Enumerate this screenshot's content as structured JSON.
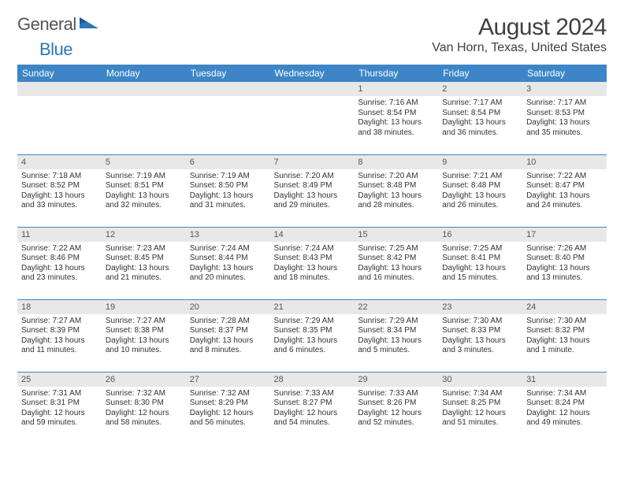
{
  "brand": {
    "part1": "General",
    "part2": "Blue"
  },
  "title": "August 2024",
  "location": "Van Horn, Texas, United States",
  "colors": {
    "header_bg": "#3d85c6",
    "header_text": "#ffffff",
    "daynum_bg": "#e8e8e8",
    "row_divider": "#3d85c6",
    "body_text": "#333333",
    "title_text": "#404040"
  },
  "day_headers": [
    "Sunday",
    "Monday",
    "Tuesday",
    "Wednesday",
    "Thursday",
    "Friday",
    "Saturday"
  ],
  "weeks": [
    [
      {
        "n": "",
        "sr": "",
        "ss": "",
        "dl": ""
      },
      {
        "n": "",
        "sr": "",
        "ss": "",
        "dl": ""
      },
      {
        "n": "",
        "sr": "",
        "ss": "",
        "dl": ""
      },
      {
        "n": "",
        "sr": "",
        "ss": "",
        "dl": ""
      },
      {
        "n": "1",
        "sr": "Sunrise: 7:16 AM",
        "ss": "Sunset: 8:54 PM",
        "dl": "Daylight: 13 hours and 38 minutes."
      },
      {
        "n": "2",
        "sr": "Sunrise: 7:17 AM",
        "ss": "Sunset: 8:54 PM",
        "dl": "Daylight: 13 hours and 36 minutes."
      },
      {
        "n": "3",
        "sr": "Sunrise: 7:17 AM",
        "ss": "Sunset: 8:53 PM",
        "dl": "Daylight: 13 hours and 35 minutes."
      }
    ],
    [
      {
        "n": "4",
        "sr": "Sunrise: 7:18 AM",
        "ss": "Sunset: 8:52 PM",
        "dl": "Daylight: 13 hours and 33 minutes."
      },
      {
        "n": "5",
        "sr": "Sunrise: 7:19 AM",
        "ss": "Sunset: 8:51 PM",
        "dl": "Daylight: 13 hours and 32 minutes."
      },
      {
        "n": "6",
        "sr": "Sunrise: 7:19 AM",
        "ss": "Sunset: 8:50 PM",
        "dl": "Daylight: 13 hours and 31 minutes."
      },
      {
        "n": "7",
        "sr": "Sunrise: 7:20 AM",
        "ss": "Sunset: 8:49 PM",
        "dl": "Daylight: 13 hours and 29 minutes."
      },
      {
        "n": "8",
        "sr": "Sunrise: 7:20 AM",
        "ss": "Sunset: 8:48 PM",
        "dl": "Daylight: 13 hours and 28 minutes."
      },
      {
        "n": "9",
        "sr": "Sunrise: 7:21 AM",
        "ss": "Sunset: 8:48 PM",
        "dl": "Daylight: 13 hours and 26 minutes."
      },
      {
        "n": "10",
        "sr": "Sunrise: 7:22 AM",
        "ss": "Sunset: 8:47 PM",
        "dl": "Daylight: 13 hours and 24 minutes."
      }
    ],
    [
      {
        "n": "11",
        "sr": "Sunrise: 7:22 AM",
        "ss": "Sunset: 8:46 PM",
        "dl": "Daylight: 13 hours and 23 minutes."
      },
      {
        "n": "12",
        "sr": "Sunrise: 7:23 AM",
        "ss": "Sunset: 8:45 PM",
        "dl": "Daylight: 13 hours and 21 minutes."
      },
      {
        "n": "13",
        "sr": "Sunrise: 7:24 AM",
        "ss": "Sunset: 8:44 PM",
        "dl": "Daylight: 13 hours and 20 minutes."
      },
      {
        "n": "14",
        "sr": "Sunrise: 7:24 AM",
        "ss": "Sunset: 8:43 PM",
        "dl": "Daylight: 13 hours and 18 minutes."
      },
      {
        "n": "15",
        "sr": "Sunrise: 7:25 AM",
        "ss": "Sunset: 8:42 PM",
        "dl": "Daylight: 13 hours and 16 minutes."
      },
      {
        "n": "16",
        "sr": "Sunrise: 7:25 AM",
        "ss": "Sunset: 8:41 PM",
        "dl": "Daylight: 13 hours and 15 minutes."
      },
      {
        "n": "17",
        "sr": "Sunrise: 7:26 AM",
        "ss": "Sunset: 8:40 PM",
        "dl": "Daylight: 13 hours and 13 minutes."
      }
    ],
    [
      {
        "n": "18",
        "sr": "Sunrise: 7:27 AM",
        "ss": "Sunset: 8:39 PM",
        "dl": "Daylight: 13 hours and 11 minutes."
      },
      {
        "n": "19",
        "sr": "Sunrise: 7:27 AM",
        "ss": "Sunset: 8:38 PM",
        "dl": "Daylight: 13 hours and 10 minutes."
      },
      {
        "n": "20",
        "sr": "Sunrise: 7:28 AM",
        "ss": "Sunset: 8:37 PM",
        "dl": "Daylight: 13 hours and 8 minutes."
      },
      {
        "n": "21",
        "sr": "Sunrise: 7:29 AM",
        "ss": "Sunset: 8:35 PM",
        "dl": "Daylight: 13 hours and 6 minutes."
      },
      {
        "n": "22",
        "sr": "Sunrise: 7:29 AM",
        "ss": "Sunset: 8:34 PM",
        "dl": "Daylight: 13 hours and 5 minutes."
      },
      {
        "n": "23",
        "sr": "Sunrise: 7:30 AM",
        "ss": "Sunset: 8:33 PM",
        "dl": "Daylight: 13 hours and 3 minutes."
      },
      {
        "n": "24",
        "sr": "Sunrise: 7:30 AM",
        "ss": "Sunset: 8:32 PM",
        "dl": "Daylight: 13 hours and 1 minute."
      }
    ],
    [
      {
        "n": "25",
        "sr": "Sunrise: 7:31 AM",
        "ss": "Sunset: 8:31 PM",
        "dl": "Daylight: 12 hours and 59 minutes."
      },
      {
        "n": "26",
        "sr": "Sunrise: 7:32 AM",
        "ss": "Sunset: 8:30 PM",
        "dl": "Daylight: 12 hours and 58 minutes."
      },
      {
        "n": "27",
        "sr": "Sunrise: 7:32 AM",
        "ss": "Sunset: 8:29 PM",
        "dl": "Daylight: 12 hours and 56 minutes."
      },
      {
        "n": "28",
        "sr": "Sunrise: 7:33 AM",
        "ss": "Sunset: 8:27 PM",
        "dl": "Daylight: 12 hours and 54 minutes."
      },
      {
        "n": "29",
        "sr": "Sunrise: 7:33 AM",
        "ss": "Sunset: 8:26 PM",
        "dl": "Daylight: 12 hours and 52 minutes."
      },
      {
        "n": "30",
        "sr": "Sunrise: 7:34 AM",
        "ss": "Sunset: 8:25 PM",
        "dl": "Daylight: 12 hours and 51 minutes."
      },
      {
        "n": "31",
        "sr": "Sunrise: 7:34 AM",
        "ss": "Sunset: 8:24 PM",
        "dl": "Daylight: 12 hours and 49 minutes."
      }
    ]
  ]
}
